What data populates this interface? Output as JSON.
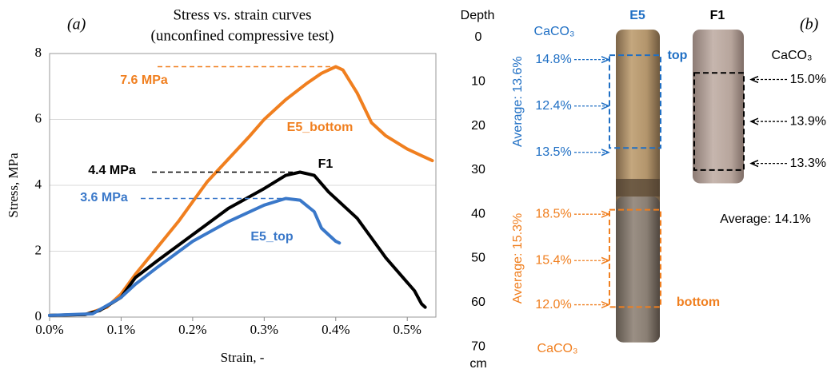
{
  "chart_data": {
    "type": "line",
    "panel_label": "(a)",
    "title": "Stress vs. strain curves",
    "subtitle": "(unconfined compressive test)",
    "x_label": "Strain, -",
    "y_label": "Stress, MPa",
    "xlim": [
      0,
      0.54
    ],
    "ylim": [
      0,
      8
    ],
    "xticks": [
      {
        "value": 0,
        "label": "0.0%"
      },
      {
        "value": 0.1,
        "label": "0.1%"
      },
      {
        "value": 0.2,
        "label": "0.2%"
      },
      {
        "value": 0.3,
        "label": "0.3%"
      },
      {
        "value": 0.4,
        "label": "0.4%"
      },
      {
        "value": 0.5,
        "label": "0.5%"
      }
    ],
    "yticks": [
      0,
      2,
      4,
      6,
      8
    ],
    "grid": true,
    "series": [
      {
        "name": "E5_bottom",
        "color": "#f07f1f",
        "x": [
          0,
          0.05,
          0.08,
          0.1,
          0.12,
          0.15,
          0.18,
          0.2,
          0.22,
          0.25,
          0.28,
          0.3,
          0.33,
          0.36,
          0.38,
          0.4,
          0.41,
          0.43,
          0.45,
          0.47,
          0.5,
          0.52,
          0.535
        ],
        "values": [
          0.05,
          0.08,
          0.3,
          0.7,
          1.3,
          2.1,
          2.9,
          3.5,
          4.1,
          4.8,
          5.5,
          6.0,
          6.6,
          7.1,
          7.4,
          7.6,
          7.5,
          6.8,
          5.9,
          5.5,
          5.1,
          4.9,
          4.75
        ]
      },
      {
        "name": "F1",
        "color": "#000000",
        "x": [
          0,
          0.05,
          0.07,
          0.1,
          0.12,
          0.15,
          0.2,
          0.25,
          0.3,
          0.33,
          0.35,
          0.37,
          0.39,
          0.41,
          0.43,
          0.45,
          0.47,
          0.49,
          0.51,
          0.52,
          0.525
        ],
        "values": [
          0.05,
          0.08,
          0.2,
          0.6,
          1.2,
          1.7,
          2.5,
          3.3,
          3.9,
          4.3,
          4.4,
          4.3,
          3.8,
          3.4,
          3.0,
          2.4,
          1.8,
          1.3,
          0.8,
          0.4,
          0.3
        ]
      },
      {
        "name": "E5_top",
        "color": "#3a78c9",
        "x": [
          0,
          0.06,
          0.08,
          0.1,
          0.12,
          0.15,
          0.2,
          0.25,
          0.3,
          0.33,
          0.35,
          0.37,
          0.38,
          0.39,
          0.4,
          0.405
        ],
        "values": [
          0.05,
          0.1,
          0.35,
          0.6,
          1.0,
          1.5,
          2.3,
          2.9,
          3.4,
          3.6,
          3.55,
          3.2,
          2.7,
          2.5,
          2.3,
          2.25
        ]
      }
    ],
    "annotations": [
      {
        "text": "7.6 MPa",
        "value": 7.6,
        "color": "#f07f1f"
      },
      {
        "text": "4.4 MPa",
        "value": 4.4,
        "color": "#000000"
      },
      {
        "text": "3.6 MPa",
        "value": 3.6,
        "color": "#3a78c9"
      }
    ]
  },
  "panel_b": {
    "label": "(b)",
    "axis_title": "Depth",
    "axis_unit": "cm",
    "depth_ticks": [
      0,
      10,
      20,
      30,
      40,
      50,
      60,
      70
    ],
    "cores": [
      {
        "name": "E5",
        "name_color": "#1f6fc4",
        "bottom": 69,
        "groups": [
          {
            "tag": "top",
            "average": "Average: 13.6%",
            "compound": "CaCO₃",
            "color": "#1f6fc4",
            "box": [
              4,
              25
            ],
            "samples": [
              {
                "text": "14.8%",
                "depth": 5
              },
              {
                "text": "12.4%",
                "depth": 15.5
              },
              {
                "text": "13.5%",
                "depth": 26
              }
            ]
          },
          {
            "tag": "bottom",
            "average": "Average: 15.3%",
            "compound": "CaCO₃",
            "color": "#f07f1f",
            "box": [
              39,
              61
            ],
            "samples": [
              {
                "text": "18.5%",
                "depth": 40
              },
              {
                "text": "15.4%",
                "depth": 50.5
              },
              {
                "text": "12.0%",
                "depth": 60.5
              }
            ]
          }
        ]
      },
      {
        "name": "F1",
        "name_color": "#000000",
        "bottom": 33,
        "groups": [
          {
            "average": "Average: 14.1%",
            "compound": "CaCO₃",
            "color": "#000000",
            "box": [
              8,
              30
            ],
            "samples": [
              {
                "text": "15.0%",
                "depth": 9.5
              },
              {
                "text": "13.9%",
                "depth": 19
              },
              {
                "text": "13.3%",
                "depth": 28.5
              }
            ]
          }
        ]
      }
    ]
  }
}
